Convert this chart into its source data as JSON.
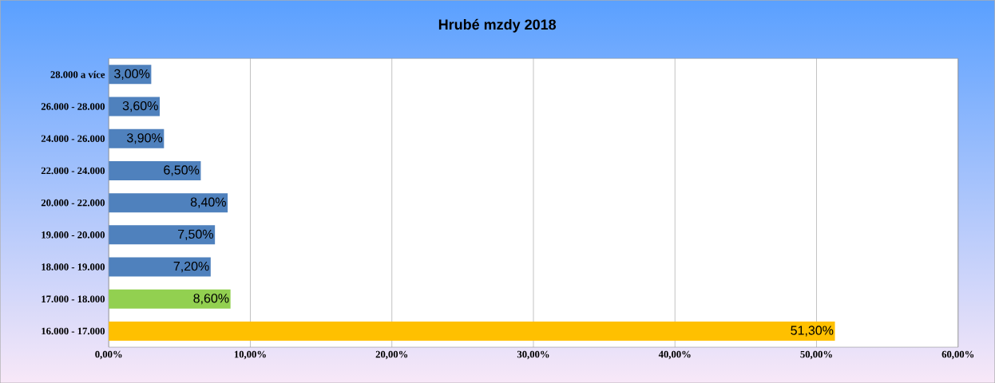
{
  "chart_data": {
    "type": "bar",
    "orientation": "horizontal",
    "title": "Hrubé mzdy 2018",
    "categories": [
      "28.000 a více",
      "26.000 - 28.000",
      "24.000 - 26.000",
      "22.000 - 24.000",
      "20.000 - 22.000",
      "19.000 - 20.000",
      "18.000 - 19.000",
      "17.000 - 18.000",
      "16.000 - 17.000"
    ],
    "values": [
      3.0,
      3.6,
      3.9,
      6.5,
      8.4,
      7.5,
      7.2,
      8.6,
      51.3
    ],
    "value_labels": [
      "3,00%",
      "3,60%",
      "3,90%",
      "6,50%",
      "8,40%",
      "7,50%",
      "7,20%",
      "8,60%",
      "51,30%"
    ],
    "colors": [
      "#4f81bd",
      "#4f81bd",
      "#4f81bd",
      "#4f81bd",
      "#4f81bd",
      "#4f81bd",
      "#4f81bd",
      "#92d050",
      "#ffc000"
    ],
    "xlim": [
      0,
      60
    ],
    "xticks": [
      {
        "value": 0,
        "label": "0,00%"
      },
      {
        "value": 10,
        "label": "10,00%"
      },
      {
        "value": 20,
        "label": "20,00%"
      },
      {
        "value": 30,
        "label": "30,00%"
      },
      {
        "value": 40,
        "label": "40,00%"
      },
      {
        "value": 50,
        "label": "50,00%"
      },
      {
        "value": 60,
        "label": "60,00%"
      }
    ],
    "grid": "x"
  }
}
